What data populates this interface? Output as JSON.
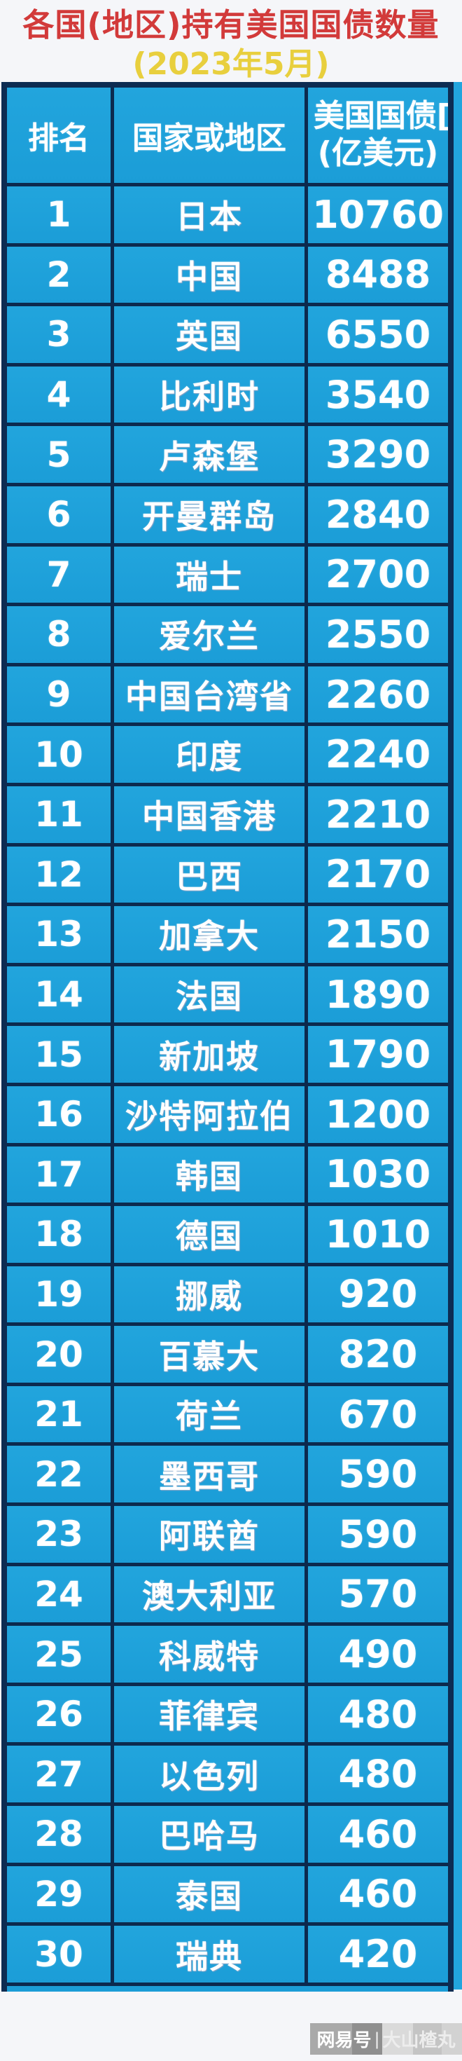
{
  "page": {
    "title_line1": "各国(地区)持有美国国债数量",
    "title_line2": "(2023年5月)"
  },
  "table": {
    "headers": {
      "rank": "排名",
      "country": "国家或地区",
      "value_line1": "美国国债[",
      "value_line2": "(亿美元)"
    },
    "rows": [
      {
        "rank": "1",
        "country": "日本",
        "value": "10760"
      },
      {
        "rank": "2",
        "country": "中国",
        "value": "8488"
      },
      {
        "rank": "3",
        "country": "英国",
        "value": "6550"
      },
      {
        "rank": "4",
        "country": "比利时",
        "value": "3540"
      },
      {
        "rank": "5",
        "country": "卢森堡",
        "value": "3290"
      },
      {
        "rank": "6",
        "country": "开曼群岛",
        "value": "2840"
      },
      {
        "rank": "7",
        "country": "瑞士",
        "value": "2700"
      },
      {
        "rank": "8",
        "country": "爱尔兰",
        "value": "2550"
      },
      {
        "rank": "9",
        "country": "中国台湾省",
        "value": "2260"
      },
      {
        "rank": "10",
        "country": "印度",
        "value": "2240"
      },
      {
        "rank": "11",
        "country": "中国香港",
        "value": "2210"
      },
      {
        "rank": "12",
        "country": "巴西",
        "value": "2170"
      },
      {
        "rank": "13",
        "country": "加拿大",
        "value": "2150"
      },
      {
        "rank": "14",
        "country": "法国",
        "value": "1890"
      },
      {
        "rank": "15",
        "country": "新加坡",
        "value": "1790"
      },
      {
        "rank": "16",
        "country": "沙特阿拉伯",
        "value": "1200"
      },
      {
        "rank": "17",
        "country": "韩国",
        "value": "1030"
      },
      {
        "rank": "18",
        "country": "德国",
        "value": "1010"
      },
      {
        "rank": "19",
        "country": "挪威",
        "value": "920"
      },
      {
        "rank": "20",
        "country": "百慕大",
        "value": "820"
      },
      {
        "rank": "21",
        "country": "荷兰",
        "value": "670"
      },
      {
        "rank": "22",
        "country": "墨西哥",
        "value": "590"
      },
      {
        "rank": "23",
        "country": "阿联酋",
        "value": "590"
      },
      {
        "rank": "24",
        "country": "澳大利亚",
        "value": "570"
      },
      {
        "rank": "25",
        "country": "科威特",
        "value": "490"
      },
      {
        "rank": "26",
        "country": "菲律宾",
        "value": "480"
      },
      {
        "rank": "27",
        "country": "以色列",
        "value": "480"
      },
      {
        "rank": "28",
        "country": "巴哈马",
        "value": "460"
      },
      {
        "rank": "29",
        "country": "泰国",
        "value": "460"
      },
      {
        "rank": "30",
        "country": "瑞典",
        "value": "420"
      }
    ]
  },
  "watermark": {
    "platform": "网易号",
    "divider": "|",
    "author": "大山楂丸"
  },
  "colors": {
    "title_red": "#d23a3a",
    "title_yellow": "#e8cf3e",
    "cell_blue": "#1b9dd7",
    "border_navy": "#0d2c52",
    "text_white": "#ffffff"
  }
}
